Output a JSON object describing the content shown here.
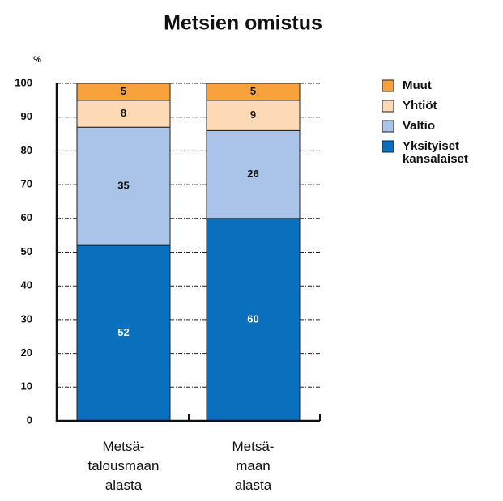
{
  "chart_data": {
    "type": "stacked_bar",
    "title": "Metsien omistus",
    "y_unit": "%",
    "categories": [
      "Metsä-\ntalousmaan\nalasta",
      "Metsä-\nmaan\nalasta"
    ],
    "series": [
      {
        "name": "Yksityiset\nkansalaiset",
        "color": "#0a6fbd",
        "label_color": "#ffffff",
        "values": [
          52,
          60
        ]
      },
      {
        "name": "Valtio",
        "color": "#a9c4e8",
        "label_color": "#111111",
        "values": [
          35,
          26
        ]
      },
      {
        "name": "Yhtiöt",
        "color": "#fdd9b5",
        "label_color": "#111111",
        "values": [
          8,
          9
        ]
      },
      {
        "name": "Muut",
        "color": "#f7a23c",
        "label_color": "#111111",
        "values": [
          5,
          5
        ]
      }
    ],
    "ylim": [
      0,
      100
    ],
    "yticks": [
      0,
      10,
      20,
      30,
      40,
      50,
      60,
      70,
      80,
      90,
      100
    ],
    "grid": true,
    "legend": "right"
  }
}
